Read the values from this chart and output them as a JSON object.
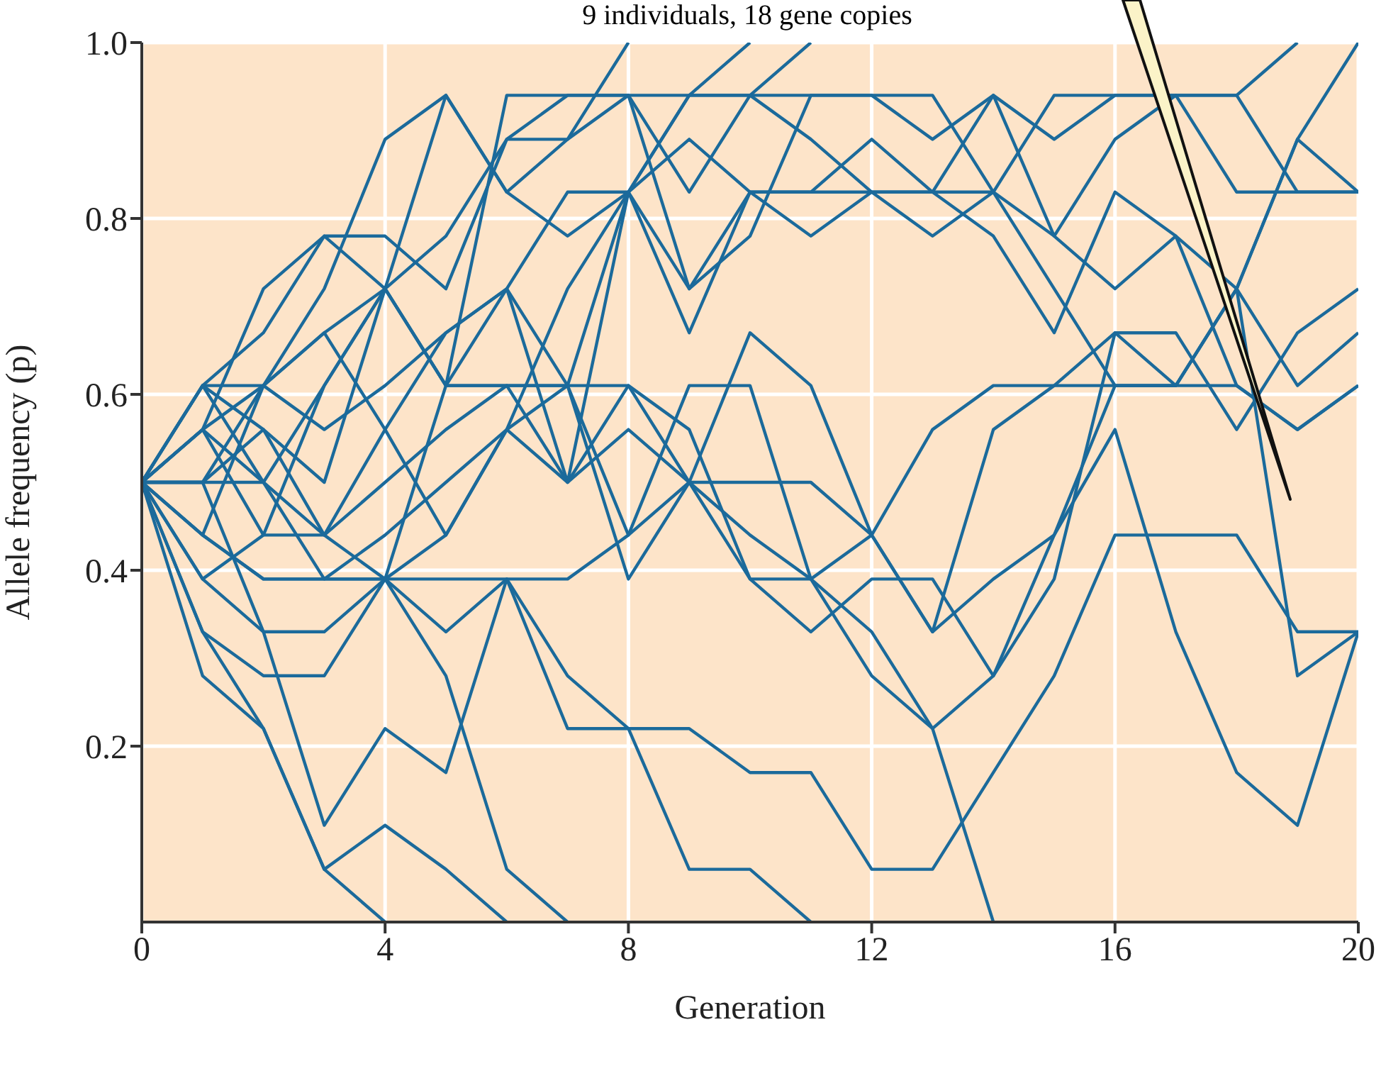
{
  "chart_data": {
    "type": "line",
    "title": "9 individuals, 18 gene copies",
    "xlabel": "Generation",
    "ylabel": "Allele frequency (p)",
    "x": [
      0,
      1,
      2,
      3,
      4,
      5,
      6,
      7,
      8,
      9,
      10,
      11,
      12,
      13,
      14,
      15,
      16,
      17,
      18,
      19,
      20
    ],
    "xlim": [
      0,
      20
    ],
    "xticks": [
      0,
      4,
      8,
      12,
      16,
      20
    ],
    "ylim": [
      0,
      1
    ],
    "yticks": [
      0.2,
      0.4,
      0.6,
      0.8,
      {
        "value": 1,
        "label": "1.0"
      }
    ],
    "grid": true,
    "series": [
      {
        "color": "#1b6a9b",
        "values": [
          0.5,
          0.61,
          0.61,
          0.72,
          0.89,
          0.94,
          0.83,
          0.89,
          1,
          null,
          null,
          null,
          null,
          null,
          null,
          null,
          null,
          null,
          null,
          null,
          null
        ]
      },
      {
        "color": "#1b6a9b",
        "values": [
          0.5,
          0.56,
          0.72,
          0.78,
          0.72,
          0.94,
          0.83,
          0.78,
          0.83,
          0.94,
          1,
          null,
          null,
          null,
          null,
          null,
          null,
          null,
          null,
          null,
          null
        ]
      },
      {
        "color": "#1b6a9b",
        "values": [
          0.5,
          0.61,
          0.67,
          0.78,
          0.78,
          0.72,
          0.89,
          0.94,
          0.94,
          0.83,
          0.94,
          1,
          null,
          null,
          null,
          null,
          null,
          null,
          null,
          null,
          null
        ]
      },
      {
        "color": "#1b6a9b",
        "values": [
          0.5,
          0.5,
          0.61,
          0.67,
          0.72,
          0.61,
          0.72,
          0.83,
          0.83,
          0.94,
          0.94,
          0.94,
          0.94,
          0.89,
          0.94,
          0.89,
          0.94,
          0.94,
          0.94,
          1,
          null
        ]
      },
      {
        "color": "#1b6a9b",
        "values": [
          0.5,
          0.61,
          0.5,
          0.61,
          0.72,
          0.78,
          0.89,
          0.89,
          0.94,
          0.94,
          0.94,
          0.89,
          0.83,
          0.83,
          0.94,
          0.78,
          0.89,
          0.94,
          0.83,
          0.83,
          0.83
        ]
      },
      {
        "color": "#1b6a9b",
        "values": [
          0.5,
          0.56,
          0.61,
          0.67,
          0.56,
          0.67,
          0.72,
          0.61,
          0.83,
          0.72,
          0.83,
          0.83,
          0.89,
          0.83,
          0.83,
          0.78,
          0.72,
          0.78,
          0.72,
          0.89,
          1
        ]
      },
      {
        "color": "#1b6a9b",
        "values": [
          0.5,
          0.56,
          0.44,
          0.61,
          0.72,
          0.61,
          0.61,
          0.61,
          0.61,
          0.5,
          0.5,
          0.5,
          0.44,
          0.56,
          0.61,
          0.61,
          0.61,
          0.61,
          0.72,
          0.89,
          0.83
        ]
      },
      {
        "color": "#1b6a9b",
        "values": [
          0.5,
          0.44,
          0.61,
          0.56,
          0.61,
          0.67,
          0.72,
          0.5,
          0.83,
          0.89,
          0.83,
          0.78,
          0.83,
          0.83,
          0.78,
          0.67,
          0.83,
          0.78,
          0.61,
          0.56,
          0.61
        ]
      },
      {
        "color": "#1b6a9b",
        "values": [
          0.5,
          0.39,
          0.44,
          0.44,
          0.56,
          0.44,
          0.56,
          0.61,
          0.44,
          0.5,
          0.39,
          0.39,
          0.33,
          0.22,
          0,
          null,
          null,
          null,
          null,
          null,
          null
        ]
      },
      {
        "color": "#1b6a9b",
        "values": [
          0.5,
          0.33,
          0.28,
          0.28,
          0.39,
          0.33,
          0.39,
          0.22,
          0.22,
          0.06,
          0.06,
          0,
          null,
          null,
          null,
          null,
          null,
          null,
          null,
          null,
          null
        ]
      },
      {
        "color": "#1b6a9b",
        "values": [
          0.5,
          0.33,
          0.22,
          0.06,
          0,
          null,
          null,
          null,
          null,
          null,
          null,
          null,
          null,
          null,
          null,
          null,
          null,
          null,
          null,
          null,
          null
        ]
      },
      {
        "color": "#1b6a9b",
        "values": [
          0.5,
          0.28,
          0.22,
          0.06,
          0.11,
          0.06,
          0,
          null,
          null,
          null,
          null,
          null,
          null,
          null,
          null,
          null,
          null,
          null,
          null,
          null,
          null
        ]
      },
      {
        "color": "#1b6a9b",
        "values": [
          0.5,
          0.39,
          0.33,
          0.11,
          0.22,
          0.17,
          0.39,
          0.28,
          0.22,
          0.22,
          0.17,
          0.17,
          0.06,
          0.06,
          0.17,
          0.28,
          0.44,
          0.44,
          0.44,
          0.33,
          0.33
        ]
      },
      {
        "color": "#1b6a9b",
        "values": [
          0.5,
          0.44,
          0.39,
          0.39,
          0.39,
          0.28,
          0.06,
          0,
          null,
          null,
          null,
          null,
          null,
          null,
          null,
          null,
          null,
          null,
          null,
          null,
          null
        ]
      },
      {
        "color": "#1b6a9b",
        "values": [
          0.5,
          0.5,
          0.33,
          0.33,
          0.39,
          0.39,
          0.39,
          0.39,
          0.44,
          0.61,
          0.61,
          0.39,
          0.44,
          0.33,
          0.39,
          0.44,
          0.61,
          0.61,
          0.72,
          0.61,
          0.67
        ]
      },
      {
        "color": "#1b6a9b",
        "values": [
          0.5,
          0.5,
          0.5,
          0.44,
          0.5,
          0.56,
          0.61,
          0.5,
          0.56,
          0.5,
          0.44,
          0.39,
          0.28,
          0.22,
          0.28,
          0.44,
          0.56,
          0.33,
          0.17,
          0.11,
          0.33
        ]
      },
      {
        "color": "#1b6a9b",
        "values": [
          0.5,
          0.44,
          0.39,
          0.39,
          0.44,
          0.5,
          0.56,
          0.5,
          0.61,
          0.56,
          0.39,
          0.33,
          0.39,
          0.39,
          0.28,
          0.39,
          0.67,
          0.61,
          0.72,
          0.28,
          0.33
        ]
      },
      {
        "color": "#1b6a9b",
        "values": [
          0.5,
          0.56,
          0.5,
          0.39,
          0.39,
          0.61,
          0.61,
          0.61,
          0.39,
          0.5,
          0.67,
          0.61,
          0.44,
          0.33,
          0.56,
          0.61,
          0.67,
          0.67,
          0.56,
          0.67,
          0.72
        ]
      },
      {
        "color": "#1b6a9b",
        "values": [
          0.5,
          0.5,
          0.56,
          0.44,
          0.39,
          0.44,
          0.56,
          0.72,
          0.83,
          0.67,
          0.83,
          0.83,
          0.83,
          0.78,
          0.83,
          0.72,
          0.61,
          0.61,
          0.61,
          0.56,
          0.61
        ]
      },
      {
        "color": "#1b6a9b",
        "values": [
          0.5,
          0.61,
          0.56,
          0.5,
          0.72,
          0.61,
          0.94,
          0.94,
          0.94,
          0.72,
          0.78,
          0.94,
          0.94,
          0.94,
          0.83,
          0.94,
          0.94,
          0.94,
          0.94,
          0.83,
          0.83
        ]
      }
    ]
  }
}
